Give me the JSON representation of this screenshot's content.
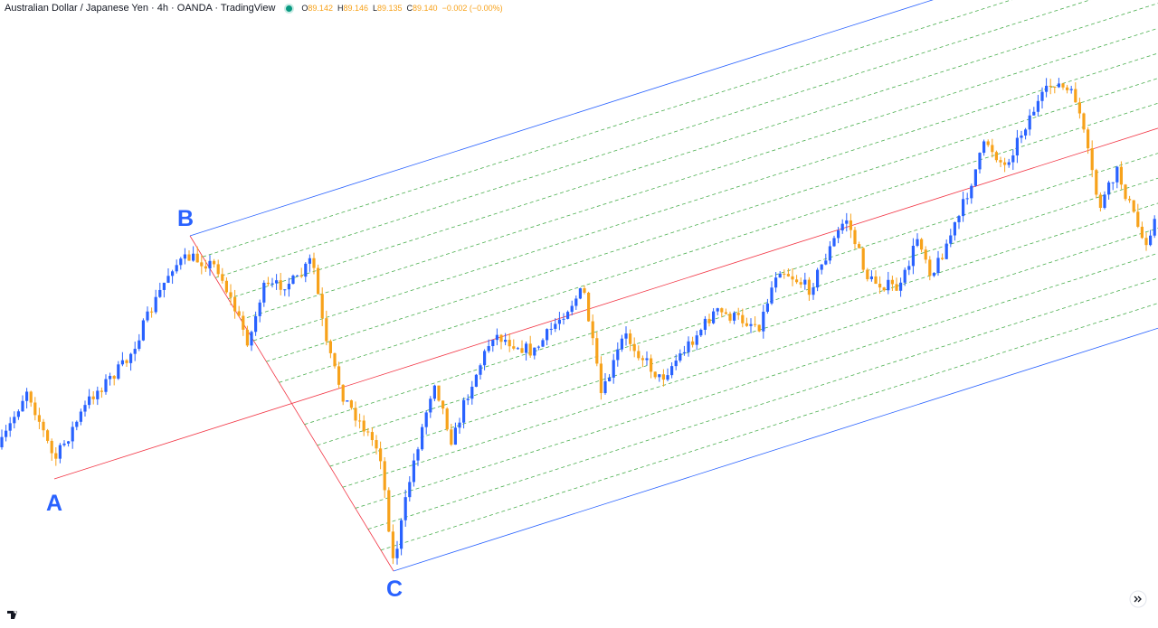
{
  "header": {
    "symbol": "Australian Dollar / Japanese Yen · 4h · OANDA · TradingView",
    "ohlc": [
      {
        "label": "O",
        "value": "89.142"
      },
      {
        "label": "H",
        "value": "89.146"
      },
      {
        "label": "L",
        "value": "89.135"
      },
      {
        "label": "C",
        "value": "89.140"
      }
    ],
    "change": "−0.002 (−0.00%)"
  },
  "annotations": {
    "a": "A",
    "b": "B",
    "c": "C"
  }
}
